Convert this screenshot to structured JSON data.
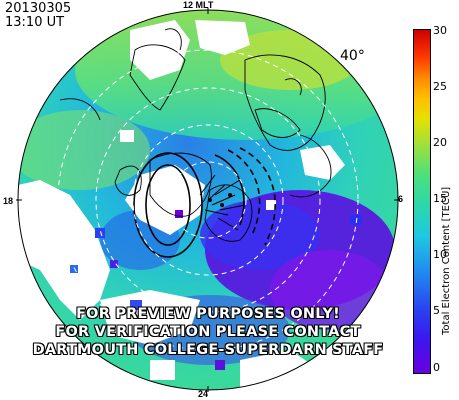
{
  "header": {
    "date": "20130305",
    "time": "13:10 UT"
  },
  "map": {
    "latitude_label": "40°",
    "mlt_labels": {
      "top": "12 MLT",
      "bottom": "24",
      "left": "18",
      "right": "06"
    },
    "watermark_lines": [
      "FOR PREVIEW PURPOSES ONLY!",
      "FOR VERIFICATION PLEASE CONTACT",
      "DARTMOUTH COLLEGE-SUPERDARN STAFF"
    ]
  },
  "colorbar": {
    "title": "Total Electron Content [TECU]",
    "ticks": [
      "0",
      "5",
      "10",
      "15",
      "20",
      "25",
      "30"
    ],
    "range": [
      0,
      30
    ],
    "colors": [
      "#6a00e0",
      "#2e28f0",
      "#1f8ff0",
      "#20d4d0",
      "#4ee07a",
      "#b8e43a",
      "#ffe200",
      "#ff9a00",
      "#ff3a00",
      "#cc0000"
    ]
  }
}
